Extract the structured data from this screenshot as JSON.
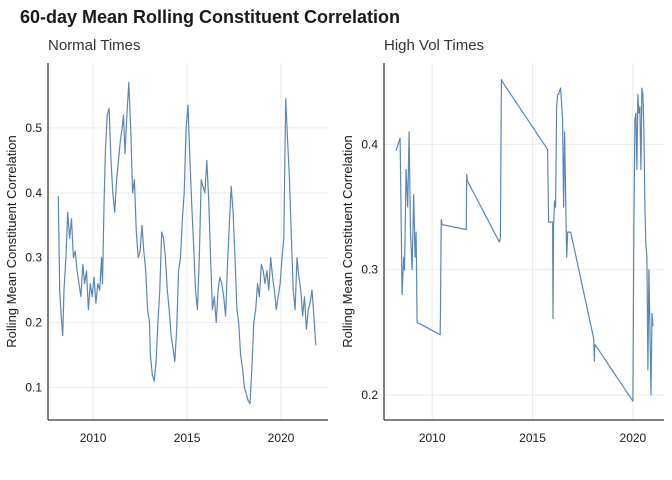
{
  "title": "60-day Mean Rolling Constituent Correlation",
  "chart_data": [
    {
      "type": "line",
      "subtitle": "Normal Times",
      "ylabel": "Rolling Mean Constituent Correlation",
      "xlim": [
        2007.6,
        2022.5
      ],
      "ylim": [
        0.05,
        0.6
      ],
      "x_ticks": [
        2010,
        2015,
        2020
      ],
      "y_ticks": [
        0.1,
        0.2,
        0.3,
        0.4,
        0.5
      ],
      "grid": true,
      "line_color": "#5b86b5",
      "series": [
        {
          "x": [
            2008.15,
            2008.22,
            2008.3,
            2008.38,
            2008.45,
            2008.55,
            2008.65,
            2008.75,
            2008.85,
            2008.95,
            2009.05,
            2009.15,
            2009.25,
            2009.35,
            2009.45,
            2009.55,
            2009.65,
            2009.75,
            2009.85,
            2009.95,
            2010.05,
            2010.15,
            2010.25,
            2010.35,
            2010.45,
            2010.5,
            2010.58,
            2010.65,
            2010.75,
            2010.85,
            2010.95,
            2011.05,
            2011.15,
            2011.25,
            2011.35,
            2011.45,
            2011.55,
            2011.62,
            2011.7,
            2011.8,
            2011.9,
            2012.0,
            2012.1,
            2012.2,
            2012.3,
            2012.4,
            2012.5,
            2012.6,
            2012.7,
            2012.8,
            2012.9,
            2013.0,
            2013.05,
            2013.15,
            2013.25,
            2013.35,
            2013.45,
            2013.55,
            2013.65,
            2013.75,
            2013.85,
            2013.95,
            2014.05,
            2014.15,
            2014.25,
            2014.35,
            2014.45,
            2014.55,
            2014.65,
            2014.75,
            2014.85,
            2014.95,
            2015.05,
            2015.15,
            2015.25,
            2015.35,
            2015.45,
            2015.55,
            2015.65,
            2015.75,
            2015.85,
            2015.95,
            2016.05,
            2016.15,
            2016.25,
            2016.35,
            2016.45,
            2016.55,
            2016.65,
            2016.75,
            2016.85,
            2016.95,
            2017.05,
            2017.15,
            2017.25,
            2017.35,
            2017.45,
            2017.55,
            2017.65,
            2017.75,
            2017.85,
            2017.95,
            2018.05,
            2018.15,
            2018.25,
            2018.35,
            2018.45,
            2018.55,
            2018.65,
            2018.75,
            2018.85,
            2018.95,
            2019.05,
            2019.15,
            2019.25,
            2019.35,
            2019.45,
            2019.55,
            2019.65,
            2019.75,
            2019.85,
            2019.95,
            2020.05,
            2020.15,
            2020.25,
            2020.35,
            2020.45,
            2020.55,
            2020.65,
            2020.75,
            2020.85,
            2020.95,
            2021.05,
            2021.15,
            2021.25,
            2021.35,
            2021.45,
            2021.55,
            2021.65,
            2021.75,
            2021.85
          ],
          "values": [
            0.395,
            0.25,
            0.21,
            0.18,
            0.25,
            0.3,
            0.37,
            0.33,
            0.36,
            0.3,
            0.31,
            0.28,
            0.26,
            0.24,
            0.29,
            0.26,
            0.28,
            0.22,
            0.26,
            0.24,
            0.27,
            0.23,
            0.26,
            0.25,
            0.3,
            0.26,
            0.38,
            0.46,
            0.52,
            0.53,
            0.45,
            0.4,
            0.37,
            0.42,
            0.45,
            0.48,
            0.5,
            0.52,
            0.46,
            0.52,
            0.57,
            0.5,
            0.4,
            0.42,
            0.34,
            0.3,
            0.31,
            0.35,
            0.31,
            0.28,
            0.22,
            0.2,
            0.15,
            0.12,
            0.11,
            0.14,
            0.2,
            0.25,
            0.34,
            0.33,
            0.3,
            0.25,
            0.22,
            0.18,
            0.16,
            0.14,
            0.19,
            0.28,
            0.3,
            0.36,
            0.4,
            0.5,
            0.535,
            0.45,
            0.38,
            0.32,
            0.25,
            0.22,
            0.3,
            0.42,
            0.41,
            0.4,
            0.45,
            0.39,
            0.3,
            0.22,
            0.24,
            0.2,
            0.25,
            0.27,
            0.26,
            0.24,
            0.21,
            0.29,
            0.35,
            0.41,
            0.37,
            0.3,
            0.22,
            0.2,
            0.15,
            0.13,
            0.1,
            0.09,
            0.08,
            0.075,
            0.13,
            0.2,
            0.22,
            0.26,
            0.24,
            0.29,
            0.28,
            0.26,
            0.28,
            0.25,
            0.3,
            0.27,
            0.25,
            0.22,
            0.24,
            0.26,
            0.3,
            0.33,
            0.545,
            0.48,
            0.42,
            0.33,
            0.25,
            0.22,
            0.3,
            0.27,
            0.25,
            0.21,
            0.24,
            0.19,
            0.22,
            0.23,
            0.25,
            0.21,
            0.165
          ]
        }
      ]
    },
    {
      "type": "line",
      "subtitle": "High Vol Times",
      "ylabel": "Rolling Mean Constituent Correlation",
      "xlim": [
        2007.6,
        2021.55
      ],
      "ylim": [
        0.18,
        0.465
      ],
      "x_ticks": [
        2010,
        2015,
        2020
      ],
      "y_ticks": [
        0.2,
        0.3,
        0.4
      ],
      "grid": true,
      "line_color": "#5b86b5",
      "series": [
        {
          "x": [
            2008.2,
            2008.4,
            2008.5,
            2008.58,
            2008.62,
            2008.7,
            2008.78,
            2008.85,
            2008.92,
            2009.0,
            2009.08,
            2009.15,
            2009.2,
            2009.25,
            2010.4,
            2010.42,
            2010.45,
            2010.5,
            2011.7,
            2011.72,
            2011.75,
            2013.35,
            2013.4,
            2013.45,
            2013.5,
            2015.75,
            2015.8,
            2016.0,
            2016.02,
            2016.05,
            2016.1,
            2016.15,
            2016.2,
            2016.25,
            2016.3,
            2016.4,
            2016.5,
            2016.55,
            2016.6,
            2016.65,
            2016.7,
            2016.75,
            2016.9,
            2018.05,
            2018.08,
            2018.1,
            2018.12,
            2020.0,
            2020.05,
            2020.1,
            2020.15,
            2020.2,
            2020.25,
            2020.3,
            2020.35,
            2020.4,
            2020.45,
            2020.5,
            2020.55,
            2020.6,
            2020.65,
            2020.7,
            2020.75,
            2020.8,
            2020.85,
            2020.9,
            2020.95,
            2021.0
          ],
          "values": [
            0.395,
            0.405,
            0.28,
            0.31,
            0.3,
            0.38,
            0.35,
            0.41,
            0.33,
            0.3,
            0.36,
            0.31,
            0.33,
            0.258,
            0.248,
            0.278,
            0.34,
            0.336,
            0.332,
            0.376,
            0.371,
            0.322,
            0.326,
            0.452,
            0.45,
            0.396,
            0.338,
            0.338,
            0.261,
            0.337,
            0.355,
            0.35,
            0.43,
            0.44,
            0.44,
            0.445,
            0.42,
            0.35,
            0.41,
            0.36,
            0.31,
            0.33,
            0.33,
            0.245,
            0.227,
            0.24,
            0.24,
            0.195,
            0.335,
            0.42,
            0.425,
            0.38,
            0.44,
            0.425,
            0.43,
            0.38,
            0.445,
            0.44,
            0.41,
            0.35,
            0.32,
            0.31,
            0.22,
            0.3,
            0.255,
            0.2,
            0.265,
            0.255
          ]
        }
      ]
    }
  ]
}
